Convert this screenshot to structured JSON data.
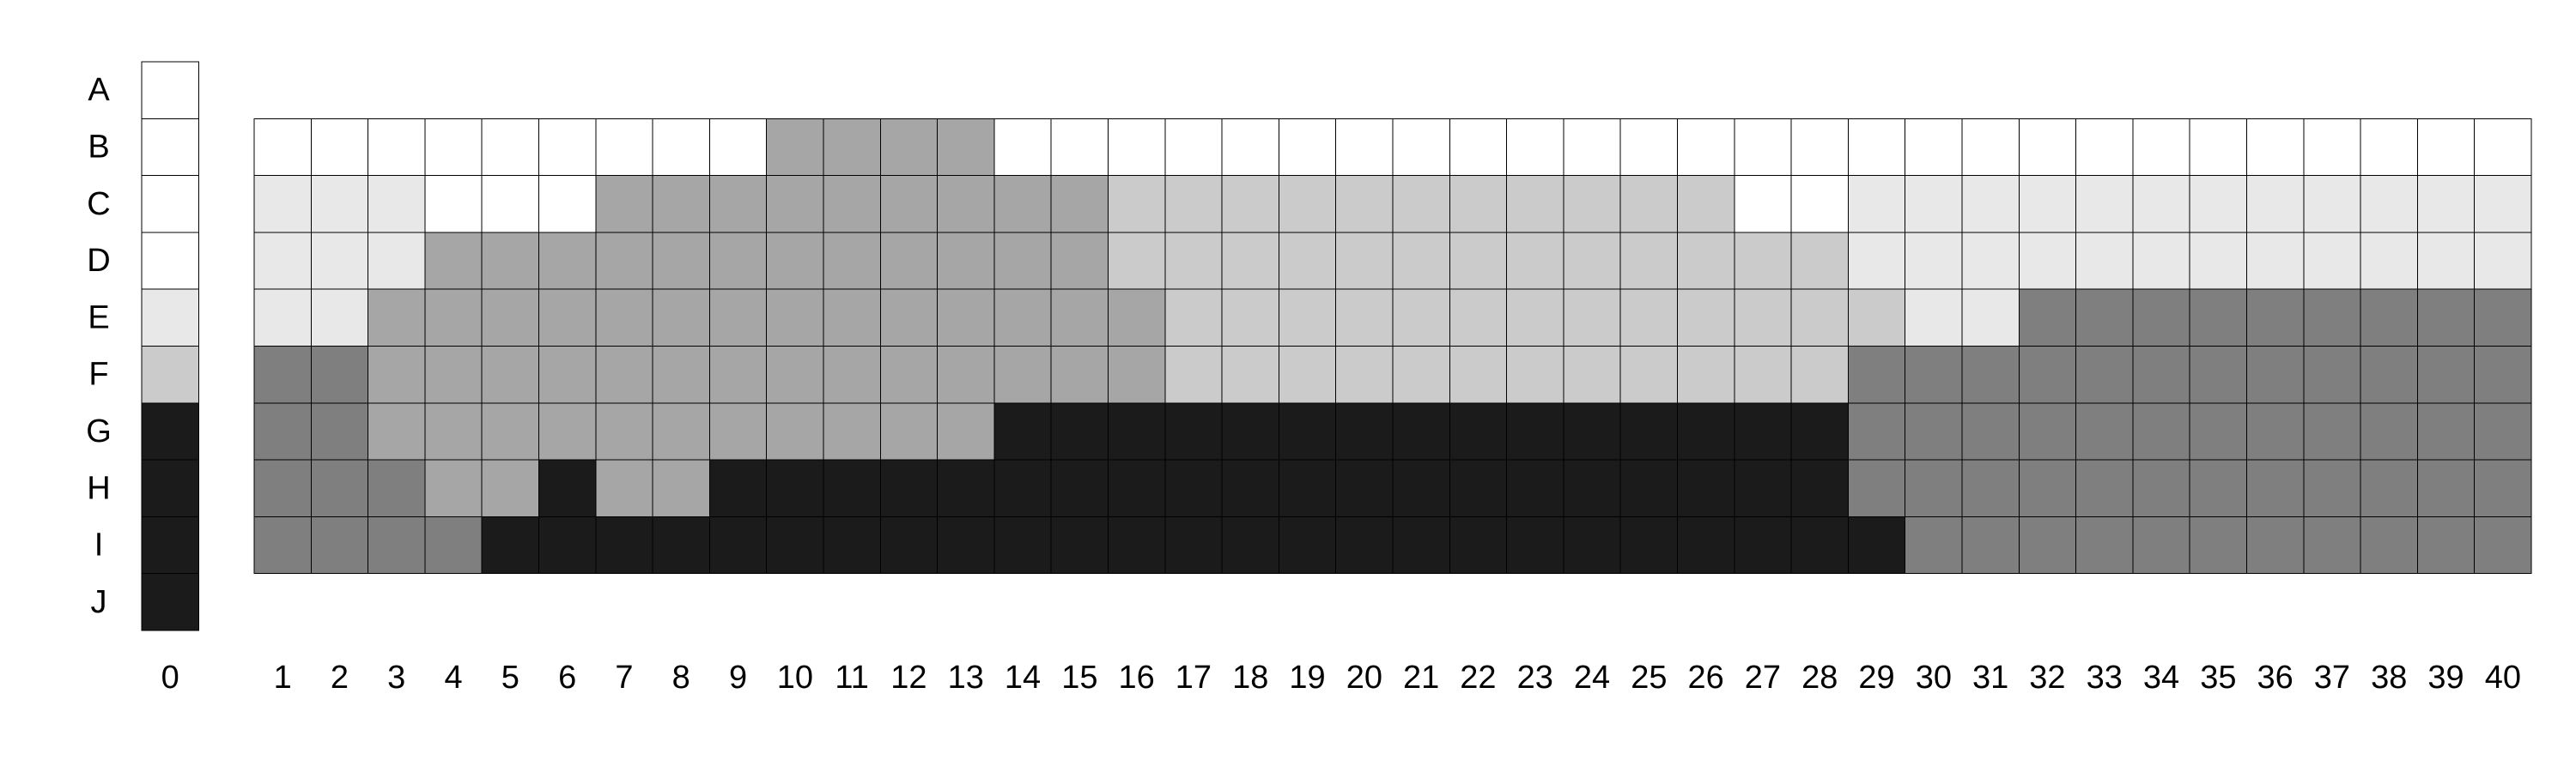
{
  "chart_data": {
    "type": "heatmap",
    "title": "",
    "xlabel": "",
    "ylabel": "",
    "grid": true,
    "legend": "none",
    "rows": [
      "A",
      "B",
      "C",
      "D",
      "E",
      "F",
      "G",
      "H",
      "I",
      "J"
    ],
    "palette": {
      "0": "#ffffff",
      "1": "#e8e8e8",
      "2": "#cbcbcb",
      "3": "#a6a6a6",
      "4": "#7f7f7f",
      "5": "#1b1b1b"
    },
    "key_column": {
      "label": "0",
      "values": [
        0,
        0,
        0,
        0,
        1,
        2,
        5,
        5,
        5,
        5
      ]
    },
    "columns": [
      "1",
      "2",
      "3",
      "4",
      "5",
      "6",
      "7",
      "8",
      "9",
      "10",
      "11",
      "12",
      "13",
      "14",
      "15",
      "16",
      "17",
      "18",
      "19",
      "20",
      "21",
      "22",
      "23",
      "24",
      "25",
      "26",
      "27",
      "28",
      "29",
      "30",
      "31",
      "32",
      "33",
      "34",
      "35",
      "36",
      "37",
      "38",
      "39",
      "40"
    ],
    "matrix_rows": [
      "B",
      "C",
      "D",
      "E",
      "F",
      "G",
      "H",
      "I"
    ],
    "matrix": [
      [
        0,
        0,
        0,
        0,
        0,
        0,
        0,
        0,
        0,
        3,
        3,
        3,
        3,
        0,
        0,
        0,
        0,
        0,
        0,
        0,
        0,
        0,
        0,
        0,
        0,
        0,
        0,
        0,
        0,
        0,
        0,
        0,
        0,
        0,
        0,
        0,
        0,
        0,
        0,
        0
      ],
      [
        1,
        1,
        1,
        0,
        0,
        0,
        3,
        3,
        3,
        3,
        3,
        3,
        3,
        3,
        3,
        2,
        2,
        2,
        2,
        2,
        2,
        2,
        2,
        2,
        2,
        2,
        0,
        0,
        1,
        1,
        1,
        1,
        1,
        1,
        1,
        1,
        1,
        1,
        1,
        1
      ],
      [
        1,
        1,
        1,
        3,
        3,
        3,
        3,
        3,
        3,
        3,
        3,
        3,
        3,
        3,
        3,
        2,
        2,
        2,
        2,
        2,
        2,
        2,
        2,
        2,
        2,
        2,
        2,
        2,
        1,
        1,
        1,
        1,
        1,
        1,
        1,
        1,
        1,
        1,
        1,
        1
      ],
      [
        1,
        1,
        3,
        3,
        3,
        3,
        3,
        3,
        3,
        3,
        3,
        3,
        3,
        3,
        3,
        3,
        2,
        2,
        2,
        2,
        2,
        2,
        2,
        2,
        2,
        2,
        2,
        2,
        2,
        1,
        1,
        4,
        4,
        4,
        4,
        4,
        4,
        4,
        4,
        4
      ],
      [
        4,
        4,
        3,
        3,
        3,
        3,
        3,
        3,
        3,
        3,
        3,
        3,
        3,
        3,
        3,
        3,
        2,
        2,
        2,
        2,
        2,
        2,
        2,
        2,
        2,
        2,
        2,
        2,
        4,
        4,
        4,
        4,
        4,
        4,
        4,
        4,
        4,
        4,
        4,
        4
      ],
      [
        4,
        4,
        3,
        3,
        3,
        3,
        3,
        3,
        3,
        3,
        3,
        3,
        3,
        5,
        5,
        5,
        5,
        5,
        5,
        5,
        5,
        5,
        5,
        5,
        5,
        5,
        5,
        5,
        4,
        4,
        4,
        4,
        4,
        4,
        4,
        4,
        4,
        4,
        4,
        4
      ],
      [
        4,
        4,
        4,
        3,
        3,
        5,
        3,
        3,
        5,
        5,
        5,
        5,
        5,
        5,
        5,
        5,
        5,
        5,
        5,
        5,
        5,
        5,
        5,
        5,
        5,
        5,
        5,
        5,
        4,
        4,
        4,
        4,
        4,
        4,
        4,
        4,
        4,
        4,
        4,
        4
      ],
      [
        4,
        4,
        4,
        4,
        5,
        5,
        5,
        5,
        5,
        5,
        5,
        5,
        5,
        5,
        5,
        5,
        5,
        5,
        5,
        5,
        5,
        5,
        5,
        5,
        5,
        5,
        5,
        5,
        5,
        4,
        4,
        4,
        4,
        4,
        4,
        4,
        4,
        4,
        4,
        4
      ]
    ]
  }
}
